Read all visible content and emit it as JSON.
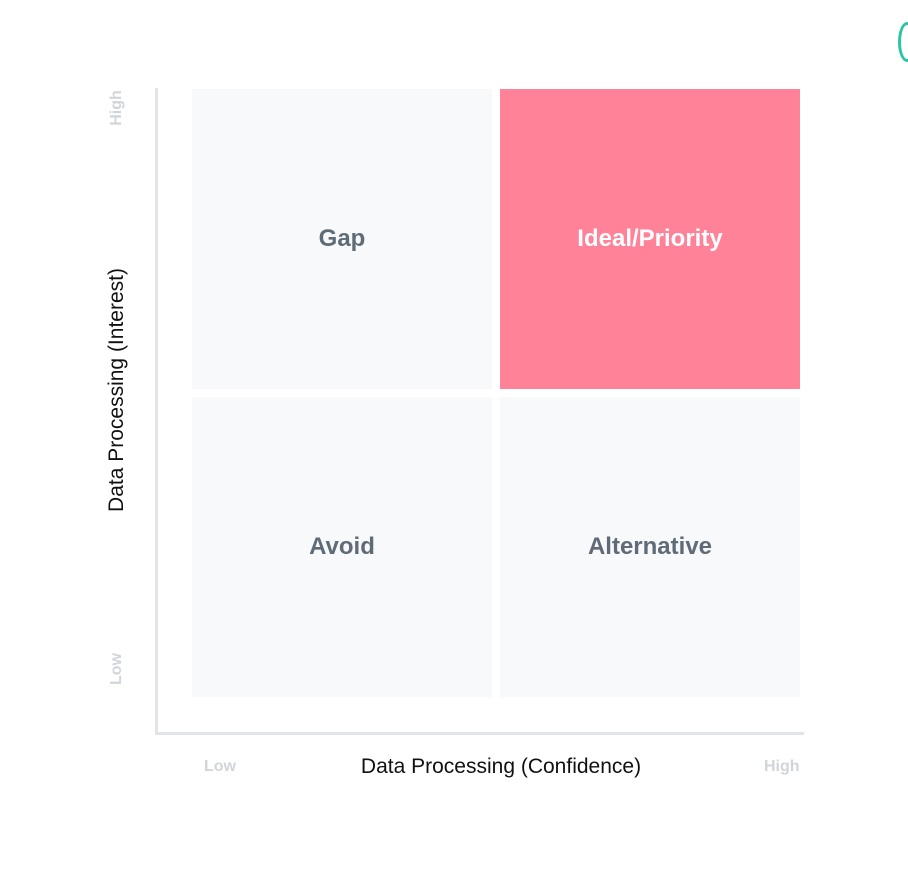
{
  "matrix": {
    "quadrants": {
      "top_left": {
        "label": "Gap"
      },
      "top_right": {
        "label": "Ideal/Priority",
        "fill": "#ff8298"
      },
      "bottom_left": {
        "label": "Avoid"
      },
      "bottom_right": {
        "label": "Alternative"
      }
    },
    "x_axis": {
      "title": "Data Processing (Confidence)",
      "low": "Low",
      "high": "High"
    },
    "y_axis": {
      "title": "Data Processing (Interest)",
      "low": "Low",
      "high": "High"
    }
  },
  "colors": {
    "cell_bg": "#f8f9fa",
    "highlight": "#ff8298",
    "cell_text": "#5f6b76",
    "tick_text": "#d0d5da",
    "axis_line": "#e1e4e8",
    "edge_accent": "#2cc5a3"
  }
}
